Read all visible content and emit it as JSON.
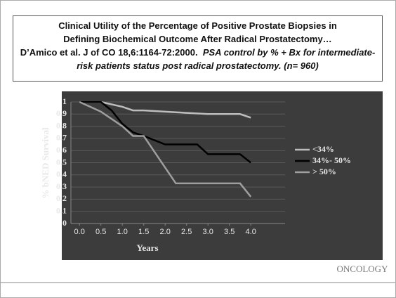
{
  "chart_data": {
    "type": "line",
    "title": [
      "Clinical Utility of the Percentage of Positive Prostate Biopsies in",
      "Defining Biochemical Outcome After Radical Prostatectomy…"
    ],
    "subtitle": "D’Amico et al. J of CO 18,6:1164-72:2000.",
    "note": "PSA control by % + Bx for intermediate-risk patients status post radical prostatectomy. (n= 960)",
    "x_label": "Years",
    "y_label": "% bNED Survival",
    "xlim": [
      -0.2,
      4.8
    ],
    "ylim": [
      0,
      1
    ],
    "xticks": [
      {
        "value": 0,
        "label": "0.0"
      },
      {
        "value": 0.5,
        "label": "0.5"
      },
      {
        "value": 1,
        "label": "1.0"
      },
      {
        "value": 1.5,
        "label": "1.5"
      },
      {
        "value": 2,
        "label": "2.0"
      },
      {
        "value": 2.5,
        "label": "2.5"
      },
      {
        "value": 3,
        "label": "3.0"
      },
      {
        "value": 3.5,
        "label": "3.5"
      },
      {
        "value": 4,
        "label": "4.0"
      }
    ],
    "yticks": [
      0,
      0.1,
      0.2,
      0.3,
      0.4,
      0.5,
      0.6,
      0.7,
      0.8,
      0.9,
      1
    ],
    "grid": true,
    "legend": "right",
    "series": [
      {
        "name": "<34%",
        "color": "#bdbdbd",
        "x": [
          0,
          0.5,
          1,
          1.25,
          1.5,
          2,
          2.5,
          3,
          3.5,
          3.75,
          4
        ],
        "values": [
          1,
          1,
          0.96,
          0.93,
          0.93,
          0.92,
          0.91,
          0.9,
          0.9,
          0.9,
          0.87
        ]
      },
      {
        "name": "34%- 50%",
        "color": "#000000",
        "x": [
          0,
          0.5,
          0.75,
          1,
          1.25,
          1.5,
          2,
          2.75,
          3,
          3.75,
          4
        ],
        "values": [
          1,
          1,
          0.93,
          0.82,
          0.75,
          0.72,
          0.65,
          0.65,
          0.57,
          0.57,
          0.5
        ]
      },
      {
        "name": "> 50%",
        "color": "#9e9e9e",
        "x": [
          0,
          0.5,
          1,
          1.25,
          1.5,
          2.25,
          3,
          3.75,
          4
        ],
        "values": [
          1,
          0.92,
          0.8,
          0.72,
          0.72,
          0.33,
          0.33,
          0.33,
          0.22
        ]
      }
    ]
  },
  "logo": "ONCOLOGY"
}
